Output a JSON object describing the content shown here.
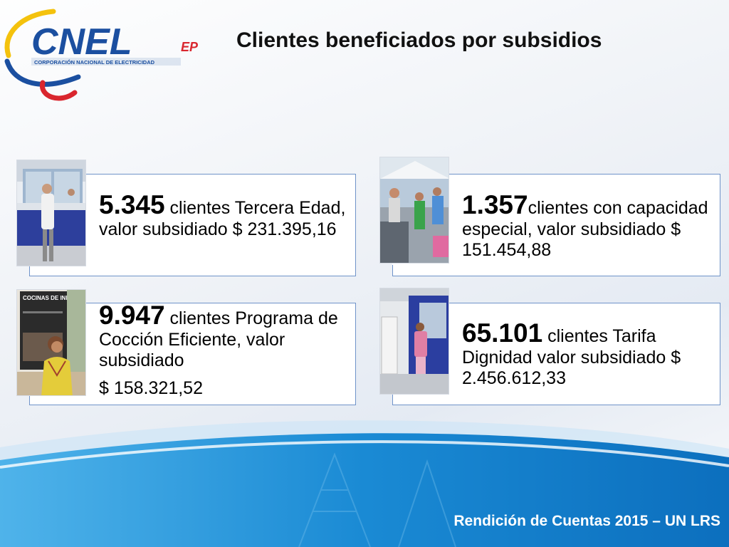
{
  "logo": {
    "brand": "CNEL",
    "suffix": "EP",
    "tagline": "CORPORACIÓN NACIONAL DE ELECTRICIDAD"
  },
  "title": "Clientes beneficiados por subsidios",
  "cards": [
    {
      "number": "5.345",
      "text": " clientes Tercera Edad, valor subsidiado $ 231.395,16",
      "photo": "office-counter-elderly-man-photo"
    },
    {
      "number": "1.357",
      "text": "clientes con capacidad especial, valor subsidiado $ 151.454,88",
      "photo": "outdoor-service-booth-photo"
    },
    {
      "number": "9.947",
      "text_line1": " clientes Programa de Cocción Eficiente, valor subsidiado",
      "text_line2": "$ 158.321,52",
      "photo": "induction-cooking-poster-photo",
      "poster_title": "COCINAS DE INDUCCIÓN"
    },
    {
      "number": "65.101",
      "text": " clientes Tarifa Dignidad valor subsidiado $ 2.456.612,33",
      "photo": "service-window-woman-photo"
    }
  ],
  "footer": "Rendición de Cuentas 2015 – UN LRS",
  "colors": {
    "card_border": "#6f93c9",
    "logo_blue": "#1b4fa0",
    "logo_yellow": "#f4c20d",
    "logo_red": "#d9262e",
    "wave_blue": "#1a8ad4"
  }
}
